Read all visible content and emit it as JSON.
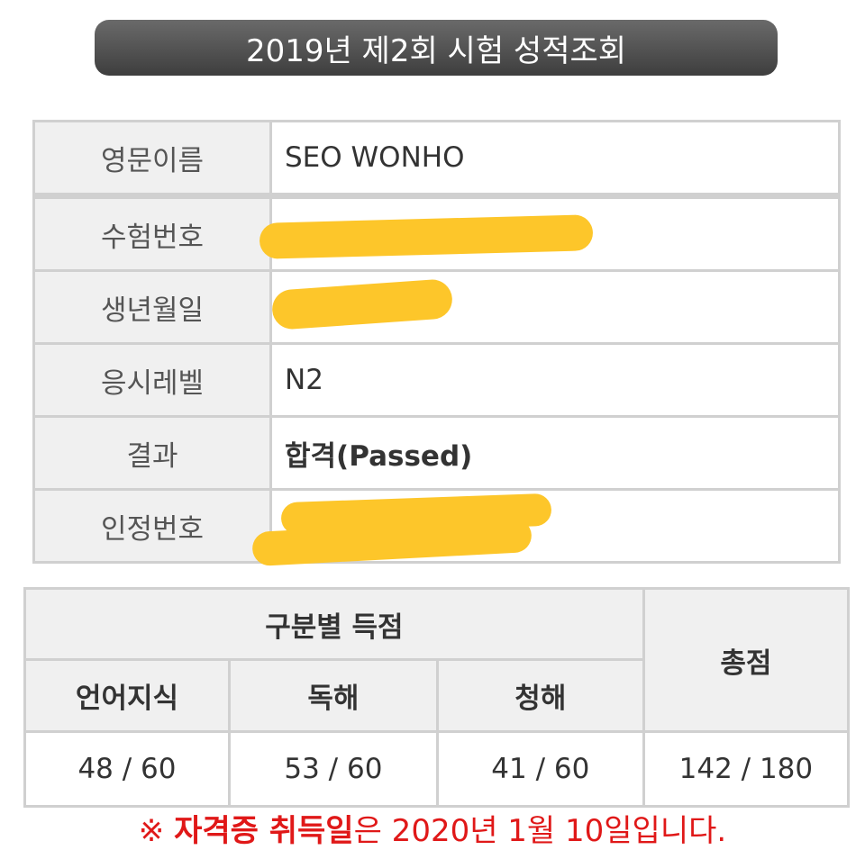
{
  "header": {
    "title": "2019년 제2회 시험 성적조회"
  },
  "info": {
    "rows": [
      {
        "label": "영문이름",
        "value": "SEO WONHO"
      },
      {
        "label": "수험번호",
        "value": ""
      },
      {
        "label": "생년월일",
        "value": ""
      },
      {
        "label": "응시레벨",
        "value": "N2"
      },
      {
        "label": "결과",
        "value": "합격(Passed)"
      },
      {
        "label": "인정번호",
        "value": ""
      }
    ],
    "redaction_color": "#fdc62a"
  },
  "scores": {
    "section_header": "구분별 득점",
    "total_header": "총점",
    "columns": [
      "언어지식",
      "독해",
      "청해"
    ],
    "values": [
      "48 / 60",
      "53 / 60",
      "41 / 60"
    ],
    "total": "142 / 180"
  },
  "note": {
    "prefix": "※ ",
    "emphasis": "자격증 취득일",
    "rest": "은 2020년 1월 10일입니다."
  }
}
